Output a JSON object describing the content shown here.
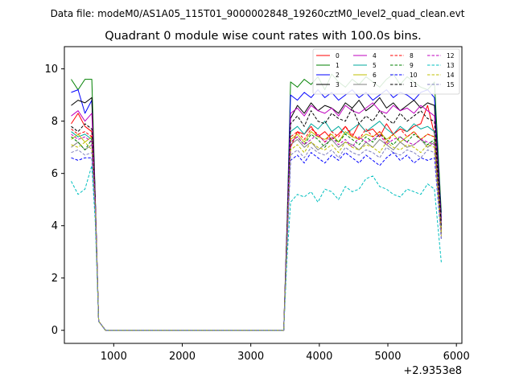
{
  "figure": {
    "suptitle": "Data file: modeM0/AS1A05_115T01_9000002848_19260cztM0_level2_quad_clean.evt"
  },
  "chart_data": {
    "type": "line",
    "title": "Quadrant 0 module wise count rates with 100.0s bins.",
    "xlabel": "",
    "ylabel": "",
    "x_offset_label": "+2.9353e8",
    "xlim": [
      280,
      6080
    ],
    "ylim": [
      -0.5,
      10.85
    ],
    "xticks": [
      1000,
      2000,
      3000,
      4000,
      5000,
      6000
    ],
    "yticks": [
      0,
      2,
      4,
      6,
      8,
      10
    ],
    "grid": false,
    "legend_placement": "top-right",
    "legend_columns": 4,
    "x": [
      380,
      480,
      580,
      680,
      730,
      780,
      880,
      980,
      1080,
      1180,
      1280,
      1380,
      1480,
      1580,
      1680,
      1780,
      1880,
      1980,
      2080,
      2180,
      2280,
      2380,
      2480,
      2580,
      2680,
      2780,
      2880,
      2980,
      3080,
      3180,
      3280,
      3380,
      3480,
      3530,
      3580,
      3680,
      3780,
      3880,
      3980,
      4080,
      4180,
      4280,
      4380,
      4480,
      4580,
      4680,
      4780,
      4880,
      4980,
      5080,
      5180,
      5280,
      5380,
      5480,
      5580,
      5680,
      5780
    ],
    "series": [
      {
        "name": "0",
        "color": "#ff0000",
        "dash": false,
        "values": [
          7.9,
          8.3,
          7.8,
          7.6,
          5.0,
          0.35,
          0.0,
          0.0,
          0.0,
          0.0,
          0.0,
          0.0,
          0.0,
          0.0,
          0.0,
          0.0,
          0.0,
          0.0,
          0.0,
          0.0,
          0.0,
          0.0,
          0.0,
          0.0,
          0.0,
          0.0,
          0.0,
          0.0,
          0.0,
          0.0,
          0.0,
          0.0,
          0.0,
          3.5,
          7.0,
          7.6,
          7.5,
          7.8,
          7.4,
          7.6,
          7.3,
          7.5,
          7.8,
          7.4,
          7.9,
          7.6,
          7.7,
          7.4,
          7.9,
          7.5,
          7.7,
          7.6,
          7.8,
          7.9,
          8.6,
          7.5,
          3.8
        ]
      },
      {
        "name": "1",
        "color": "#008000",
        "dash": false,
        "values": [
          9.6,
          9.2,
          9.6,
          9.6,
          5.2,
          0.35,
          0.0,
          0.0,
          0.0,
          0.0,
          0.0,
          0.0,
          0.0,
          0.0,
          0.0,
          0.0,
          0.0,
          0.0,
          0.0,
          0.0,
          0.0,
          0.0,
          0.0,
          0.0,
          0.0,
          0.0,
          0.0,
          0.0,
          0.0,
          0.0,
          0.0,
          0.0,
          0.0,
          4.2,
          9.5,
          9.3,
          9.6,
          9.4,
          9.7,
          9.2,
          9.8,
          9.5,
          9.3,
          9.6,
          9.4,
          9.7,
          9.5,
          9.3,
          9.6,
          9.8,
          9.4,
          9.7,
          9.5,
          9.3,
          9.2,
          9.5,
          4.5
        ]
      },
      {
        "name": "2",
        "color": "#0000ff",
        "dash": false,
        "values": [
          9.1,
          9.2,
          8.3,
          8.8,
          5.1,
          0.35,
          0.0,
          0.0,
          0.0,
          0.0,
          0.0,
          0.0,
          0.0,
          0.0,
          0.0,
          0.0,
          0.0,
          0.0,
          0.0,
          0.0,
          0.0,
          0.0,
          0.0,
          0.0,
          0.0,
          0.0,
          0.0,
          0.0,
          0.0,
          0.0,
          0.0,
          0.0,
          0.0,
          4.0,
          9.0,
          8.8,
          9.1,
          8.9,
          9.2,
          8.9,
          9.1,
          8.8,
          9.0,
          9.2,
          8.9,
          9.1,
          8.8,
          9.0,
          9.2,
          8.9,
          9.1,
          9.0,
          8.8,
          9.1,
          9.2,
          8.9,
          4.3
        ]
      },
      {
        "name": "3",
        "color": "#000000",
        "dash": false,
        "values": [
          8.6,
          8.8,
          8.7,
          8.9,
          5.1,
          0.35,
          0.0,
          0.0,
          0.0,
          0.0,
          0.0,
          0.0,
          0.0,
          0.0,
          0.0,
          0.0,
          0.0,
          0.0,
          0.0,
          0.0,
          0.0,
          0.0,
          0.0,
          0.0,
          0.0,
          0.0,
          0.0,
          0.0,
          0.0,
          0.0,
          0.0,
          0.0,
          0.0,
          4.0,
          8.1,
          8.6,
          8.3,
          8.7,
          8.4,
          8.6,
          8.5,
          8.3,
          8.7,
          8.5,
          8.8,
          8.4,
          8.6,
          8.9,
          8.5,
          8.7,
          8.4,
          8.6,
          8.8,
          8.5,
          8.7,
          8.6,
          4.2
        ]
      },
      {
        "name": "4",
        "color": "#bf00bf",
        "dash": false,
        "values": [
          8.2,
          8.4,
          8.0,
          8.3,
          5.0,
          0.35,
          0.0,
          0.0,
          0.0,
          0.0,
          0.0,
          0.0,
          0.0,
          0.0,
          0.0,
          0.0,
          0.0,
          0.0,
          0.0,
          0.0,
          0.0,
          0.0,
          0.0,
          0.0,
          0.0,
          0.0,
          0.0,
          0.0,
          0.0,
          0.0,
          0.0,
          0.0,
          0.0,
          3.9,
          8.3,
          8.5,
          8.2,
          8.6,
          8.4,
          8.3,
          8.5,
          8.2,
          8.6,
          8.4,
          8.3,
          8.5,
          8.7,
          8.4,
          8.3,
          8.6,
          8.4,
          8.5,
          8.3,
          8.6,
          8.4,
          8.2,
          4.1
        ]
      },
      {
        "name": "5",
        "color": "#00a99d",
        "dash": false,
        "values": [
          7.6,
          7.4,
          7.5,
          7.3,
          4.8,
          0.35,
          0.0,
          0.0,
          0.0,
          0.0,
          0.0,
          0.0,
          0.0,
          0.0,
          0.0,
          0.0,
          0.0,
          0.0,
          0.0,
          0.0,
          0.0,
          0.0,
          0.0,
          0.0,
          0.0,
          0.0,
          0.0,
          0.0,
          0.0,
          0.0,
          0.0,
          0.0,
          0.0,
          3.6,
          7.6,
          7.8,
          7.5,
          7.9,
          7.7,
          8.0,
          7.6,
          7.8,
          7.5,
          7.7,
          7.9,
          7.6,
          7.8,
          8.0,
          7.7,
          7.5,
          7.8,
          7.6,
          7.9,
          7.7,
          7.8,
          7.6,
          3.9
        ]
      },
      {
        "name": "6",
        "color": "#bfbf00",
        "dash": false,
        "values": [
          7.3,
          7.5,
          7.2,
          7.4,
          4.8,
          0.35,
          0.0,
          0.0,
          0.0,
          0.0,
          0.0,
          0.0,
          0.0,
          0.0,
          0.0,
          0.0,
          0.0,
          0.0,
          0.0,
          0.0,
          0.0,
          0.0,
          0.0,
          0.0,
          0.0,
          0.0,
          0.0,
          0.0,
          0.0,
          0.0,
          0.0,
          0.0,
          0.0,
          3.5,
          7.3,
          7.5,
          7.2,
          7.6,
          7.4,
          7.3,
          7.5,
          7.2,
          7.6,
          7.4,
          7.3,
          7.5,
          7.4,
          7.6,
          7.3,
          7.5,
          7.2,
          7.4,
          7.6,
          7.3,
          7.5,
          7.4,
          3.8
        ]
      },
      {
        "name": "7",
        "color": "#808080",
        "dash": false,
        "values": [
          7.0,
          7.2,
          6.9,
          7.1,
          4.7,
          0.35,
          0.0,
          0.0,
          0.0,
          0.0,
          0.0,
          0.0,
          0.0,
          0.0,
          0.0,
          0.0,
          0.0,
          0.0,
          0.0,
          0.0,
          0.0,
          0.0,
          0.0,
          0.0,
          0.0,
          0.0,
          0.0,
          0.0,
          0.0,
          0.0,
          0.0,
          0.0,
          0.0,
          3.4,
          7.1,
          7.3,
          7.0,
          7.2,
          6.9,
          7.1,
          7.3,
          7.0,
          7.2,
          7.1,
          6.9,
          7.2,
          7.0,
          7.3,
          7.1,
          6.9,
          7.2,
          7.0,
          7.1,
          7.3,
          7.0,
          7.2,
          3.7
        ]
      },
      {
        "name": "8",
        "color": "#ff0000",
        "dash": true,
        "values": [
          7.7,
          7.5,
          7.6,
          7.4,
          4.9,
          0.35,
          0.0,
          0.0,
          0.0,
          0.0,
          0.0,
          0.0,
          0.0,
          0.0,
          0.0,
          0.0,
          0.0,
          0.0,
          0.0,
          0.0,
          0.0,
          0.0,
          0.0,
          0.0,
          0.0,
          0.0,
          0.0,
          0.0,
          0.0,
          0.0,
          0.0,
          0.0,
          0.0,
          3.6,
          7.4,
          7.6,
          7.3,
          7.7,
          7.5,
          7.2,
          7.6,
          7.4,
          7.8,
          7.5,
          7.3,
          7.7,
          7.4,
          7.6,
          7.2,
          7.5,
          7.7,
          7.4,
          7.6,
          7.3,
          7.5,
          7.4,
          3.8
        ]
      },
      {
        "name": "9",
        "color": "#008000",
        "dash": true,
        "values": [
          7.4,
          7.2,
          6.9,
          7.3,
          4.8,
          0.35,
          0.0,
          0.0,
          0.0,
          0.0,
          0.0,
          0.0,
          0.0,
          0.0,
          0.0,
          0.0,
          0.0,
          0.0,
          0.0,
          0.0,
          0.0,
          0.0,
          0.0,
          0.0,
          0.0,
          0.0,
          0.0,
          0.0,
          0.0,
          0.0,
          0.0,
          0.0,
          0.0,
          3.5,
          7.2,
          7.4,
          7.1,
          7.5,
          7.3,
          7.0,
          7.4,
          7.2,
          7.5,
          7.3,
          7.1,
          7.4,
          7.2,
          7.5,
          7.3,
          7.1,
          7.4,
          7.2,
          7.5,
          7.3,
          7.1,
          7.3,
          3.7
        ]
      },
      {
        "name": "10",
        "color": "#0000ff",
        "dash": true,
        "values": [
          6.6,
          6.5,
          6.6,
          6.6,
          4.5,
          0.35,
          0.0,
          0.0,
          0.0,
          0.0,
          0.0,
          0.0,
          0.0,
          0.0,
          0.0,
          0.0,
          0.0,
          0.0,
          0.0,
          0.0,
          0.0,
          0.0,
          0.0,
          0.0,
          0.0,
          0.0,
          0.0,
          0.0,
          0.0,
          0.0,
          0.0,
          0.0,
          0.0,
          3.3,
          6.5,
          6.7,
          6.4,
          6.8,
          6.6,
          6.4,
          6.7,
          6.5,
          6.8,
          6.6,
          6.4,
          6.7,
          6.5,
          6.3,
          6.6,
          6.8,
          6.5,
          6.7,
          6.4,
          6.6,
          6.5,
          6.6,
          3.5
        ]
      },
      {
        "name": "11",
        "color": "#000000",
        "dash": true,
        "values": [
          7.8,
          7.6,
          7.9,
          7.7,
          4.9,
          0.35,
          0.0,
          0.0,
          0.0,
          0.0,
          0.0,
          0.0,
          0.0,
          0.0,
          0.0,
          0.0,
          0.0,
          0.0,
          0.0,
          0.0,
          0.0,
          0.0,
          0.0,
          0.0,
          0.0,
          0.0,
          0.0,
          0.0,
          0.0,
          0.0,
          0.0,
          0.0,
          0.0,
          3.7,
          7.9,
          8.2,
          7.8,
          8.4,
          8.0,
          7.9,
          8.3,
          8.1,
          8.0,
          8.5,
          7.9,
          8.2,
          8.0,
          8.4,
          8.1,
          7.9,
          8.3,
          8.0,
          8.2,
          8.4,
          8.1,
          8.0,
          4.0
        ]
      },
      {
        "name": "12",
        "color": "#bf00bf",
        "dash": true,
        "values": [
          7.5,
          7.3,
          7.4,
          7.2,
          4.8,
          0.35,
          0.0,
          0.0,
          0.0,
          0.0,
          0.0,
          0.0,
          0.0,
          0.0,
          0.0,
          0.0,
          0.0,
          0.0,
          0.0,
          0.0,
          0.0,
          0.0,
          0.0,
          0.0,
          0.0,
          0.0,
          0.0,
          0.0,
          0.0,
          0.0,
          0.0,
          0.0,
          0.0,
          3.5,
          7.2,
          7.4,
          7.1,
          7.3,
          7.5,
          7.2,
          7.4,
          7.1,
          7.3,
          7.0,
          7.4,
          7.2,
          7.3,
          7.5,
          7.1,
          7.3,
          7.4,
          7.2,
          7.1,
          7.3,
          7.2,
          7.1,
          3.6
        ]
      },
      {
        "name": "13",
        "color": "#00bfbf",
        "dash": true,
        "values": [
          5.7,
          5.2,
          5.4,
          6.3,
          4.2,
          0.35,
          0.0,
          0.0,
          0.0,
          0.0,
          0.0,
          0.0,
          0.0,
          0.0,
          0.0,
          0.0,
          0.0,
          0.0,
          0.0,
          0.0,
          0.0,
          0.0,
          0.0,
          0.0,
          0.0,
          0.0,
          0.0,
          0.0,
          0.0,
          0.0,
          0.0,
          0.0,
          0.0,
          2.8,
          4.9,
          5.2,
          5.1,
          5.3,
          4.9,
          5.4,
          5.3,
          5.0,
          5.5,
          5.3,
          5.4,
          5.8,
          5.9,
          5.5,
          5.4,
          5.2,
          5.1,
          5.4,
          5.3,
          5.2,
          5.6,
          5.4,
          2.6
        ]
      },
      {
        "name": "14",
        "color": "#bfbf00",
        "dash": true,
        "values": [
          7.1,
          7.0,
          7.2,
          6.9,
          4.7,
          0.35,
          0.0,
          0.0,
          0.0,
          0.0,
          0.0,
          0.0,
          0.0,
          0.0,
          0.0,
          0.0,
          0.0,
          0.0,
          0.0,
          0.0,
          0.0,
          0.0,
          0.0,
          0.0,
          0.0,
          0.0,
          0.0,
          0.0,
          0.0,
          0.0,
          0.0,
          0.0,
          0.0,
          3.4,
          6.9,
          7.1,
          6.8,
          7.2,
          7.0,
          6.9,
          7.1,
          6.8,
          7.2,
          7.0,
          6.9,
          7.1,
          7.0,
          6.8,
          7.2,
          7.0,
          6.9,
          7.1,
          7.0,
          6.8,
          7.1,
          7.0,
          3.6
        ]
      },
      {
        "name": "15",
        "color": "#8080bf",
        "dash": true,
        "values": [
          6.8,
          6.9,
          6.7,
          6.8,
          4.6,
          0.35,
          0.0,
          0.0,
          0.0,
          0.0,
          0.0,
          0.0,
          0.0,
          0.0,
          0.0,
          0.0,
          0.0,
          0.0,
          0.0,
          0.0,
          0.0,
          0.0,
          0.0,
          0.0,
          0.0,
          0.0,
          0.0,
          0.0,
          0.0,
          0.0,
          0.0,
          0.0,
          0.0,
          3.3,
          6.7,
          6.9,
          6.6,
          7.0,
          6.8,
          6.7,
          6.9,
          6.6,
          7.0,
          6.8,
          6.7,
          6.9,
          6.8,
          6.6,
          7.0,
          6.8,
          6.7,
          6.9,
          6.8,
          6.6,
          6.9,
          6.8,
          3.5
        ]
      }
    ]
  }
}
